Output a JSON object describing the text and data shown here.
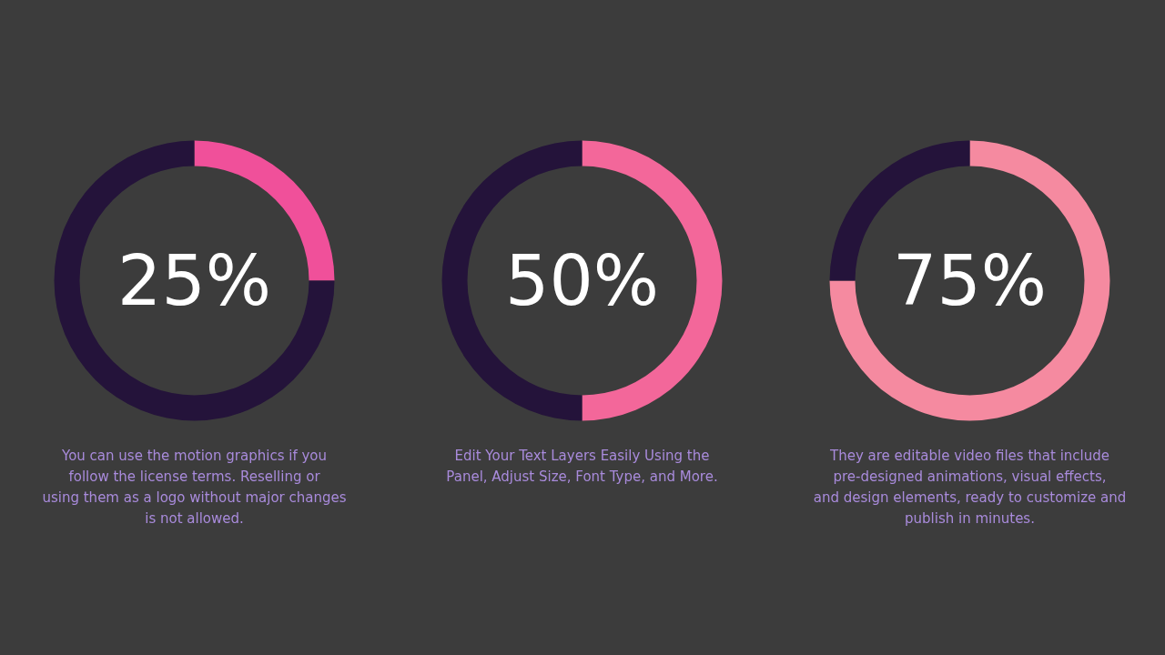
{
  "chart_data": [
    {
      "type": "donut",
      "categories": [
        null,
        null
      ],
      "values": [
        25,
        75
      ],
      "colors": [
        "#f0509a",
        "#24133a"
      ],
      "annotations": [
        "25%",
        "You can use the motion graphics if you follow the license terms. Reselling or using them as a logo without major changes is not allowed."
      ]
    },
    {
      "type": "donut",
      "categories": [
        null,
        null
      ],
      "values": [
        50,
        50
      ],
      "colors": [
        "#f3679a",
        "#24133a"
      ],
      "annotations": [
        "50%",
        "Edit Your Text Layers Easily Using the Panel, Adjust Size, Font Type, and More."
      ]
    },
    {
      "type": "donut",
      "categories": [
        null,
        null
      ],
      "values": [
        75,
        25
      ],
      "colors": [
        "#f58aa0",
        "#24133a"
      ],
      "annotations": [
        "75%",
        "They are editable video files that include pre-designed animations, visual effects, and design elements, ready to customize and publish in minutes."
      ]
    }
  ]
}
